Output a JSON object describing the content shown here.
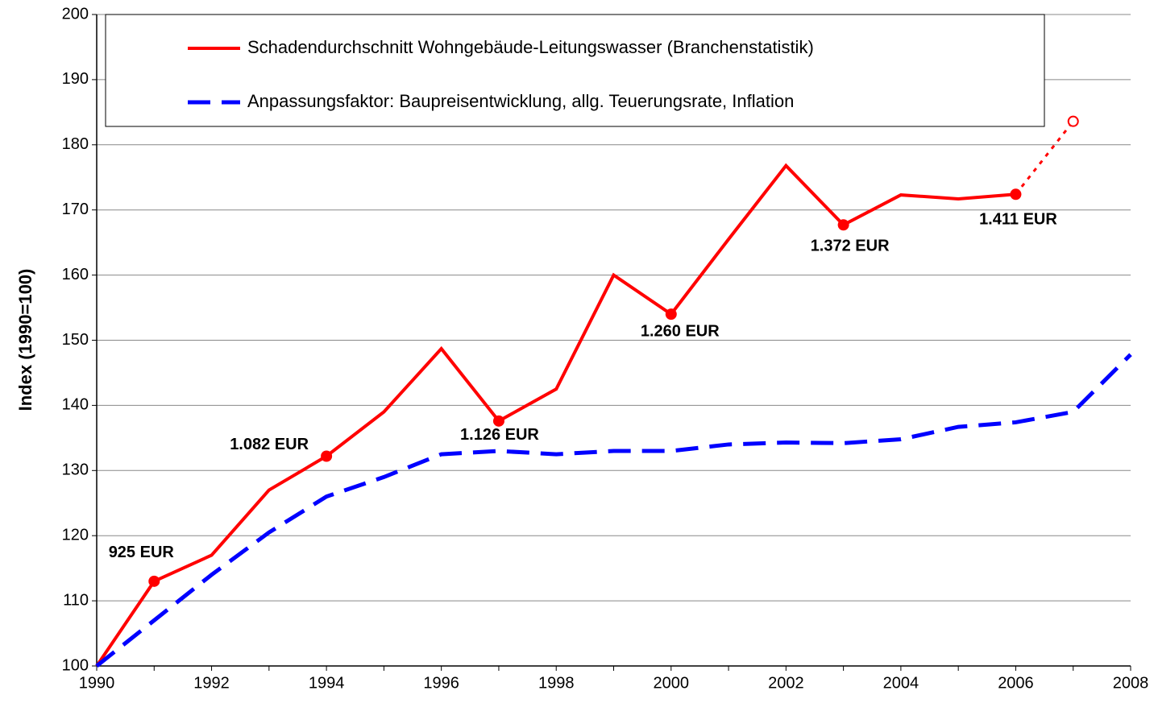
{
  "chart_data": {
    "type": "line",
    "ylabel": "Index (1990=100)",
    "x": [
      1990,
      1991,
      1992,
      1993,
      1994,
      1995,
      1996,
      1997,
      1998,
      1999,
      2000,
      2001,
      2002,
      2003,
      2004,
      2005,
      2006,
      2007,
      2008
    ],
    "xlim": [
      1990,
      2008
    ],
    "xticks": [
      1990,
      1992,
      1994,
      1996,
      1998,
      2000,
      2002,
      2004,
      2006,
      2008
    ],
    "ylim": [
      100,
      200
    ],
    "yticks": [
      100,
      110,
      120,
      130,
      140,
      150,
      160,
      170,
      180,
      190,
      200
    ],
    "grid": true,
    "series": [
      {
        "name": "Schadendurchschnitt Wohngebäude-Leitungswasser (Branchenstatistik)",
        "color": "#ff0000",
        "style": "solid",
        "values": [
          100,
          113,
          117,
          127,
          132.2,
          139,
          148.7,
          137.6,
          142.5,
          160,
          154,
          165.5,
          176.8,
          167.7,
          172.3,
          171.7,
          172.4,
          null,
          null
        ],
        "forecast": {
          "x": 2007,
          "value": 183.6
        }
      },
      {
        "name": "Anpassungsfaktor: Baupreisentwicklung, allg. Teuerungsrate, Inflation",
        "color": "#0000ff",
        "style": "dashed",
        "values": [
          100,
          107,
          114,
          120.5,
          126,
          129,
          132.5,
          133,
          132.5,
          133,
          133,
          134,
          134.3,
          134.2,
          134.8,
          136.7,
          137.4,
          139,
          147.8
        ]
      }
    ],
    "annotations": [
      {
        "x": 1991,
        "label": "925 EUR"
      },
      {
        "x": 1994,
        "label": "1.082 EUR"
      },
      {
        "x": 1997,
        "label": "1.126 EUR"
      },
      {
        "x": 2000,
        "label": "1.260 EUR"
      },
      {
        "x": 2003,
        "label": "1.372 EUR"
      },
      {
        "x": 2006,
        "label": "1.411 EUR"
      }
    ]
  }
}
